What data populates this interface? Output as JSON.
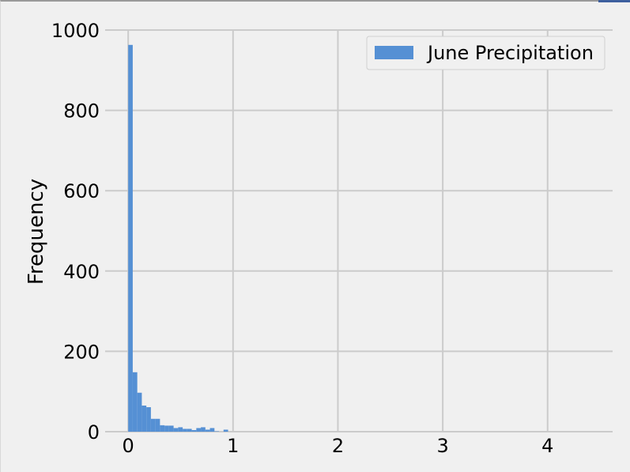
{
  "chart_data": {
    "type": "histogram",
    "xlabel": "",
    "ylabel": "Frequency",
    "xlim": [
      -0.22,
      4.62
    ],
    "ylim": [
      0,
      1000
    ],
    "x_ticks": [
      0,
      1,
      2,
      3,
      4
    ],
    "x_tick_labels": [
      "0",
      "1",
      "2",
      "3",
      "4"
    ],
    "y_ticks": [
      0,
      200,
      400,
      600,
      800,
      1000
    ],
    "y_tick_labels": [
      "0",
      "200",
      "400",
      "600",
      "800",
      "1000"
    ],
    "grid": true,
    "legend_position": "top-right",
    "bar_color": "#5590d4",
    "series": [
      {
        "name": "June Precipitation",
        "bin_start": 0,
        "bin_width": 0.0433,
        "counts": [
          963,
          148,
          97,
          65,
          61,
          32,
          32,
          16,
          15,
          15,
          9,
          11,
          7,
          7,
          4,
          9,
          11,
          5,
          9,
          1,
          0,
          5,
          0
        ]
      }
    ]
  }
}
